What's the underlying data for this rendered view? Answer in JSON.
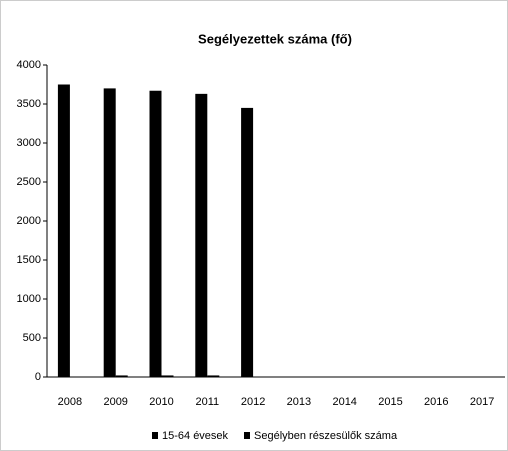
{
  "chart_data": {
    "type": "bar",
    "title": "Segélyezettek száma (fő)",
    "categories": [
      "2008",
      "2009",
      "2010",
      "2011",
      "2012",
      "2013",
      "2014",
      "2015",
      "2016",
      "2017"
    ],
    "series": [
      {
        "name": "15-64 évesek",
        "color": "#000000",
        "values": [
          3750,
          3700,
          3670,
          3630,
          3450,
          null,
          null,
          null,
          null,
          null
        ]
      },
      {
        "name": "Segélyben részesülők száma",
        "color": "#000000",
        "values": [
          0,
          20,
          20,
          20,
          0,
          null,
          null,
          null,
          null,
          null
        ]
      }
    ],
    "ylim": [
      0,
      4000
    ],
    "yticks": [
      0,
      500,
      1000,
      1500,
      2000,
      2500,
      3000,
      3500,
      4000
    ],
    "grid": false
  }
}
